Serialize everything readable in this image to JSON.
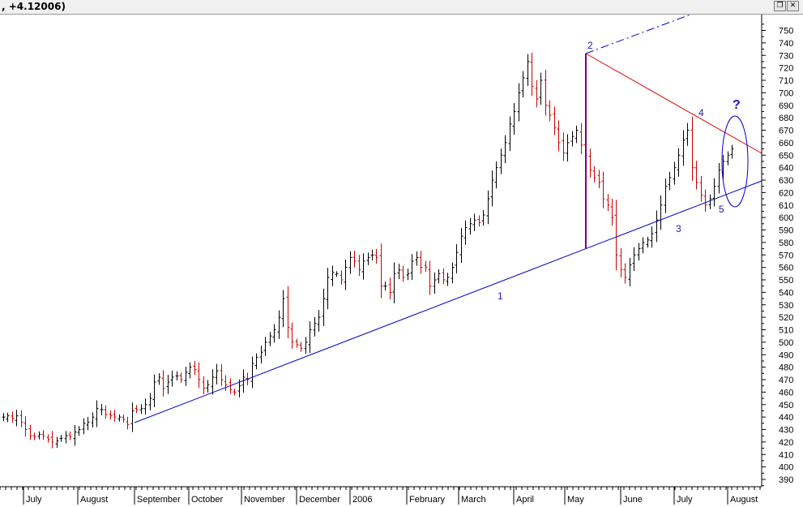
{
  "window": {
    "title": ", +4.12006)",
    "buttons": [
      {
        "name": "restore-button",
        "glyph": "❐"
      },
      {
        "name": "close-button",
        "glyph": "✕"
      }
    ]
  },
  "chart_data": {
    "type": "ohlc",
    "title": "",
    "xlabel": "",
    "ylabel": "",
    "ylim": [
      381,
      762
    ],
    "y_ticks": [
      390,
      400,
      410,
      420,
      430,
      440,
      450,
      460,
      470,
      480,
      490,
      500,
      510,
      520,
      530,
      540,
      550,
      560,
      570,
      580,
      590,
      600,
      610,
      620,
      630,
      640,
      650,
      660,
      670,
      680,
      690,
      700,
      710,
      720,
      730,
      740,
      750
    ],
    "x_month_labels": [
      "July",
      "August",
      "September",
      "October",
      "November",
      "December",
      "2006",
      "February",
      "March",
      "April",
      "May",
      "June",
      "July",
      "August"
    ],
    "bar_colors": {
      "up": "#000000",
      "down": "#cc0000"
    },
    "annotation_colors": {
      "trend": "#0000cc",
      "resistance": "#dd0000",
      "measure": "#800080"
    },
    "wave_labels": [
      "1",
      "2",
      "3",
      "4",
      "5",
      "?"
    ],
    "approx_closes": [
      440,
      441,
      439,
      441,
      436,
      430,
      425,
      424,
      426,
      425,
      422,
      420,
      421,
      423,
      425,
      424,
      428,
      430,
      435,
      436,
      440,
      447,
      446,
      442,
      441,
      440,
      440,
      438,
      434,
      445,
      446,
      447,
      450,
      455,
      468,
      472,
      463,
      468,
      472,
      473,
      470,
      476,
      480,
      478,
      470,
      463,
      466,
      472,
      477,
      470,
      466,
      462,
      460,
      465,
      472,
      470,
      483,
      488,
      492,
      500,
      505,
      510,
      520,
      535,
      512,
      500,
      498,
      495,
      500,
      510,
      515,
      520,
      535,
      552,
      556,
      555,
      550,
      560,
      568,
      565,
      558,
      565,
      568,
      570,
      568,
      545,
      545,
      540,
      555,
      558,
      552,
      555,
      565,
      568,
      560,
      560,
      545,
      550,
      555,
      550,
      552,
      560,
      572,
      585,
      592,
      595,
      598,
      596,
      602,
      615,
      630,
      640,
      650,
      660,
      675,
      685,
      700,
      712,
      725,
      705,
      695,
      710,
      690,
      682,
      672,
      660,
      652,
      660,
      665,
      670,
      658,
      650,
      638,
      632,
      628,
      615,
      610,
      600,
      570,
      558,
      552,
      562,
      570,
      575,
      580,
      582,
      587,
      598,
      610,
      625,
      632,
      640,
      650,
      662,
      670,
      640,
      628,
      618,
      610,
      615,
      625,
      638,
      645,
      650,
      655
    ]
  }
}
